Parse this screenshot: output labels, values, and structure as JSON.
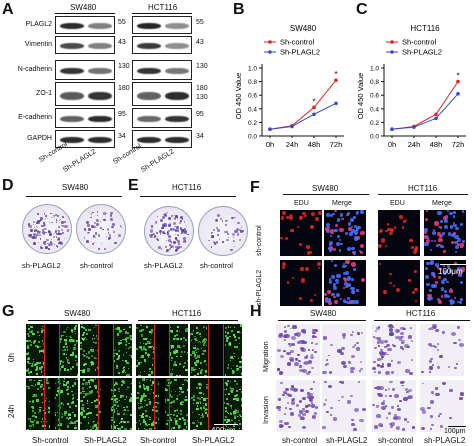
{
  "panels": {
    "A": {
      "letter": "A",
      "cell_lines": [
        "SW480",
        "HCT116"
      ],
      "proteins": [
        "PLAGL2",
        "Vimentin",
        "N-cadherin",
        "ZO-1",
        "E-cadherin",
        "GAPDH"
      ],
      "markers_left": [
        "55",
        "43",
        "130",
        "180",
        "95",
        "34"
      ],
      "markers_right": [
        "55",
        "43",
        "130",
        "180",
        "95",
        "34"
      ],
      "markers_extra": [
        "130"
      ],
      "lane_labels": [
        "Sh-control",
        "Sh-PLAGL2",
        "Sh-control",
        "Sh-PLAGL2"
      ]
    },
    "B": {
      "letter": "B",
      "title": "SW480",
      "ylabel": "OD 450 Value",
      "legend": [
        "Sh-control",
        "Sh-PLAGL2"
      ],
      "star": "*"
    },
    "C": {
      "letter": "C",
      "title": "HCT116",
      "ylabel": "OD 450 Value",
      "legend": [
        "Sh-control",
        "Sh-PLAGL2"
      ],
      "star": "*"
    },
    "D": {
      "letter": "D",
      "header": "SW480",
      "labels": [
        "sh-PLAGL2",
        "sh-control"
      ]
    },
    "E": {
      "letter": "E",
      "header": "HCT116",
      "labels": [
        "sh-PLAGL2",
        "sh-control"
      ]
    },
    "F": {
      "letter": "F",
      "headers": [
        "SW480",
        "HCT116"
      ],
      "col_labels": [
        "EDU",
        "Merge",
        "EDU",
        "Merge"
      ],
      "row_labels": [
        "sh-control",
        "sh-PLAGL2"
      ],
      "scale": "100μm"
    },
    "G": {
      "letter": "G",
      "headers": [
        "SW480",
        "HCT116"
      ],
      "row_labels": [
        "0h",
        "24h"
      ],
      "col_labels": [
        "Sh-control",
        "Sh-PLAGL2",
        "Sh-control",
        "Sh-PLAGL2"
      ],
      "scale": "400μm"
    },
    "H": {
      "letter": "H",
      "headers": [
        "SW480",
        "HCT116"
      ],
      "row_labels": [
        "Migration",
        "Invasion"
      ],
      "col_labels": [
        "sh-control",
        "sh-PLAGL2",
        "sh-control",
        "sh-PLAGL2"
      ],
      "scale": "100μm"
    }
  },
  "chart_data": [
    {
      "type": "line",
      "title": "SW480",
      "xlabel": "",
      "ylabel": "OD 450 Value",
      "categories": [
        "0h",
        "24h",
        "48h",
        "72h"
      ],
      "ylim": [
        0,
        1.0
      ],
      "yticks": [
        "0.0",
        "0.2",
        "0.4",
        "0.6",
        "0.8",
        "1.0"
      ],
      "legend_position": "top-left",
      "series": [
        {
          "name": "Sh-control",
          "color": "#d62728",
          "values": [
            0.1,
            0.15,
            0.42,
            0.82
          ]
        },
        {
          "name": "Sh-PLAGL2",
          "color": "#3b4cc0",
          "values": [
            0.1,
            0.14,
            0.32,
            0.48
          ]
        }
      ],
      "annotations": [
        "*",
        "*"
      ]
    },
    {
      "type": "line",
      "title": "HCT116",
      "xlabel": "",
      "ylabel": "OD 450 Value",
      "categories": [
        "0h",
        "24h",
        "48h",
        "72h"
      ],
      "ylim": [
        0,
        1.0
      ],
      "yticks": [
        "0.0",
        "0.2",
        "0.4",
        "0.6",
        "0.8",
        "1.0"
      ],
      "legend_position": "top-left",
      "series": [
        {
          "name": "Sh-control",
          "color": "#d62728",
          "values": [
            0.1,
            0.14,
            0.32,
            0.8
          ]
        },
        {
          "name": "Sh-PLAGL2",
          "color": "#3b4cc0",
          "values": [
            0.1,
            0.13,
            0.26,
            0.62
          ]
        }
      ],
      "annotations": [
        "*"
      ]
    }
  ]
}
